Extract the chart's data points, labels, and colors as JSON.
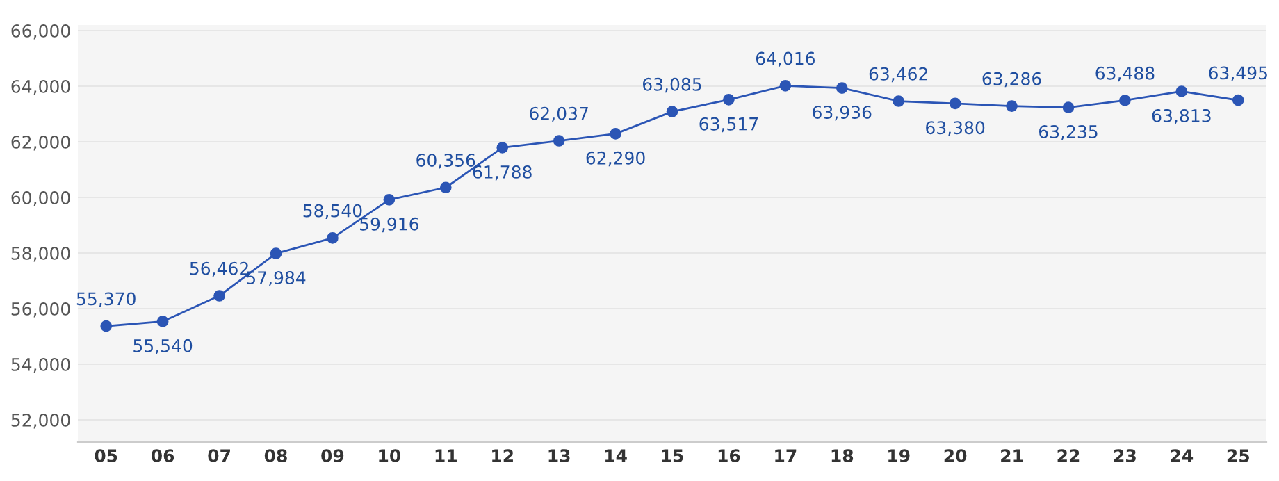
{
  "chart_data": {
    "type": "line",
    "categories": [
      "05",
      "06",
      "07",
      "08",
      "09",
      "10",
      "11",
      "12",
      "13",
      "14",
      "15",
      "16",
      "17",
      "18",
      "19",
      "20",
      "21",
      "22",
      "23",
      "24",
      "25"
    ],
    "series": [
      {
        "color": "#2b55b5",
        "values": [
          55370,
          55540,
          56462,
          57984,
          58540,
          59916,
          60356,
          61788,
          62037,
          62290,
          63085,
          63517,
          64016,
          63936,
          63462,
          63380,
          63286,
          63235,
          63488,
          63813,
          63495
        ],
        "value_labels": [
          "55,370",
          "55,540",
          "56,462",
          "57,984",
          "58,540",
          "59,916",
          "60,356",
          "61,788",
          "62,037",
          "62,290",
          "63,085",
          "63,517",
          "64,016",
          "63,936",
          "63,462",
          "63,380",
          "63,286",
          "63,235",
          "63,488",
          "63,813",
          "63,495"
        ]
      }
    ],
    "ylim": [
      51200,
      66200
    ],
    "yticks": [
      {
        "value": 52000,
        "label": "52,000"
      },
      {
        "value": 54000,
        "label": "54,000"
      },
      {
        "value": 56000,
        "label": "56,000"
      },
      {
        "value": 58000,
        "label": "58,000"
      },
      {
        "value": 60000,
        "label": "60,000"
      },
      {
        "value": 62000,
        "label": "62,000"
      },
      {
        "value": 64000,
        "label": "64,000"
      },
      {
        "value": 66000,
        "label": "66,000"
      }
    ],
    "grid": "y",
    "marker": "circle",
    "line_style": "solid",
    "legend": false
  }
}
